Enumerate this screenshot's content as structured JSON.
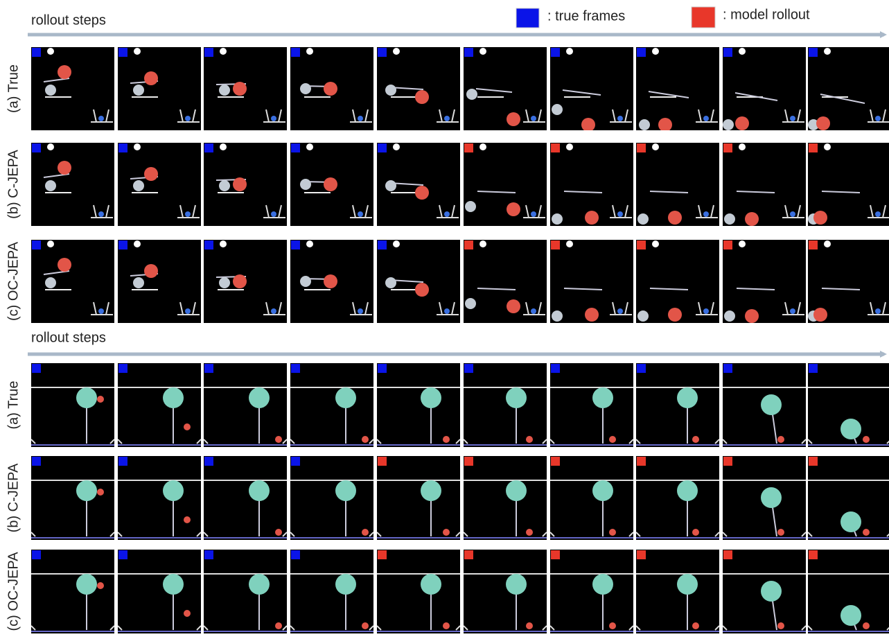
{
  "legend": {
    "true_frames": ": true frames",
    "model_rollout": ": model rollout"
  },
  "panels": [
    {
      "axis_label": "rollout steps",
      "rows": [
        "(a) True",
        "(b) C-JEPA",
        "(c) OC-JEPA"
      ]
    },
    {
      "axis_label": "rollout steps",
      "rows": [
        "(a) True",
        "(b) C-JEPA",
        "(c) OC-JEPA"
      ]
    }
  ]
}
